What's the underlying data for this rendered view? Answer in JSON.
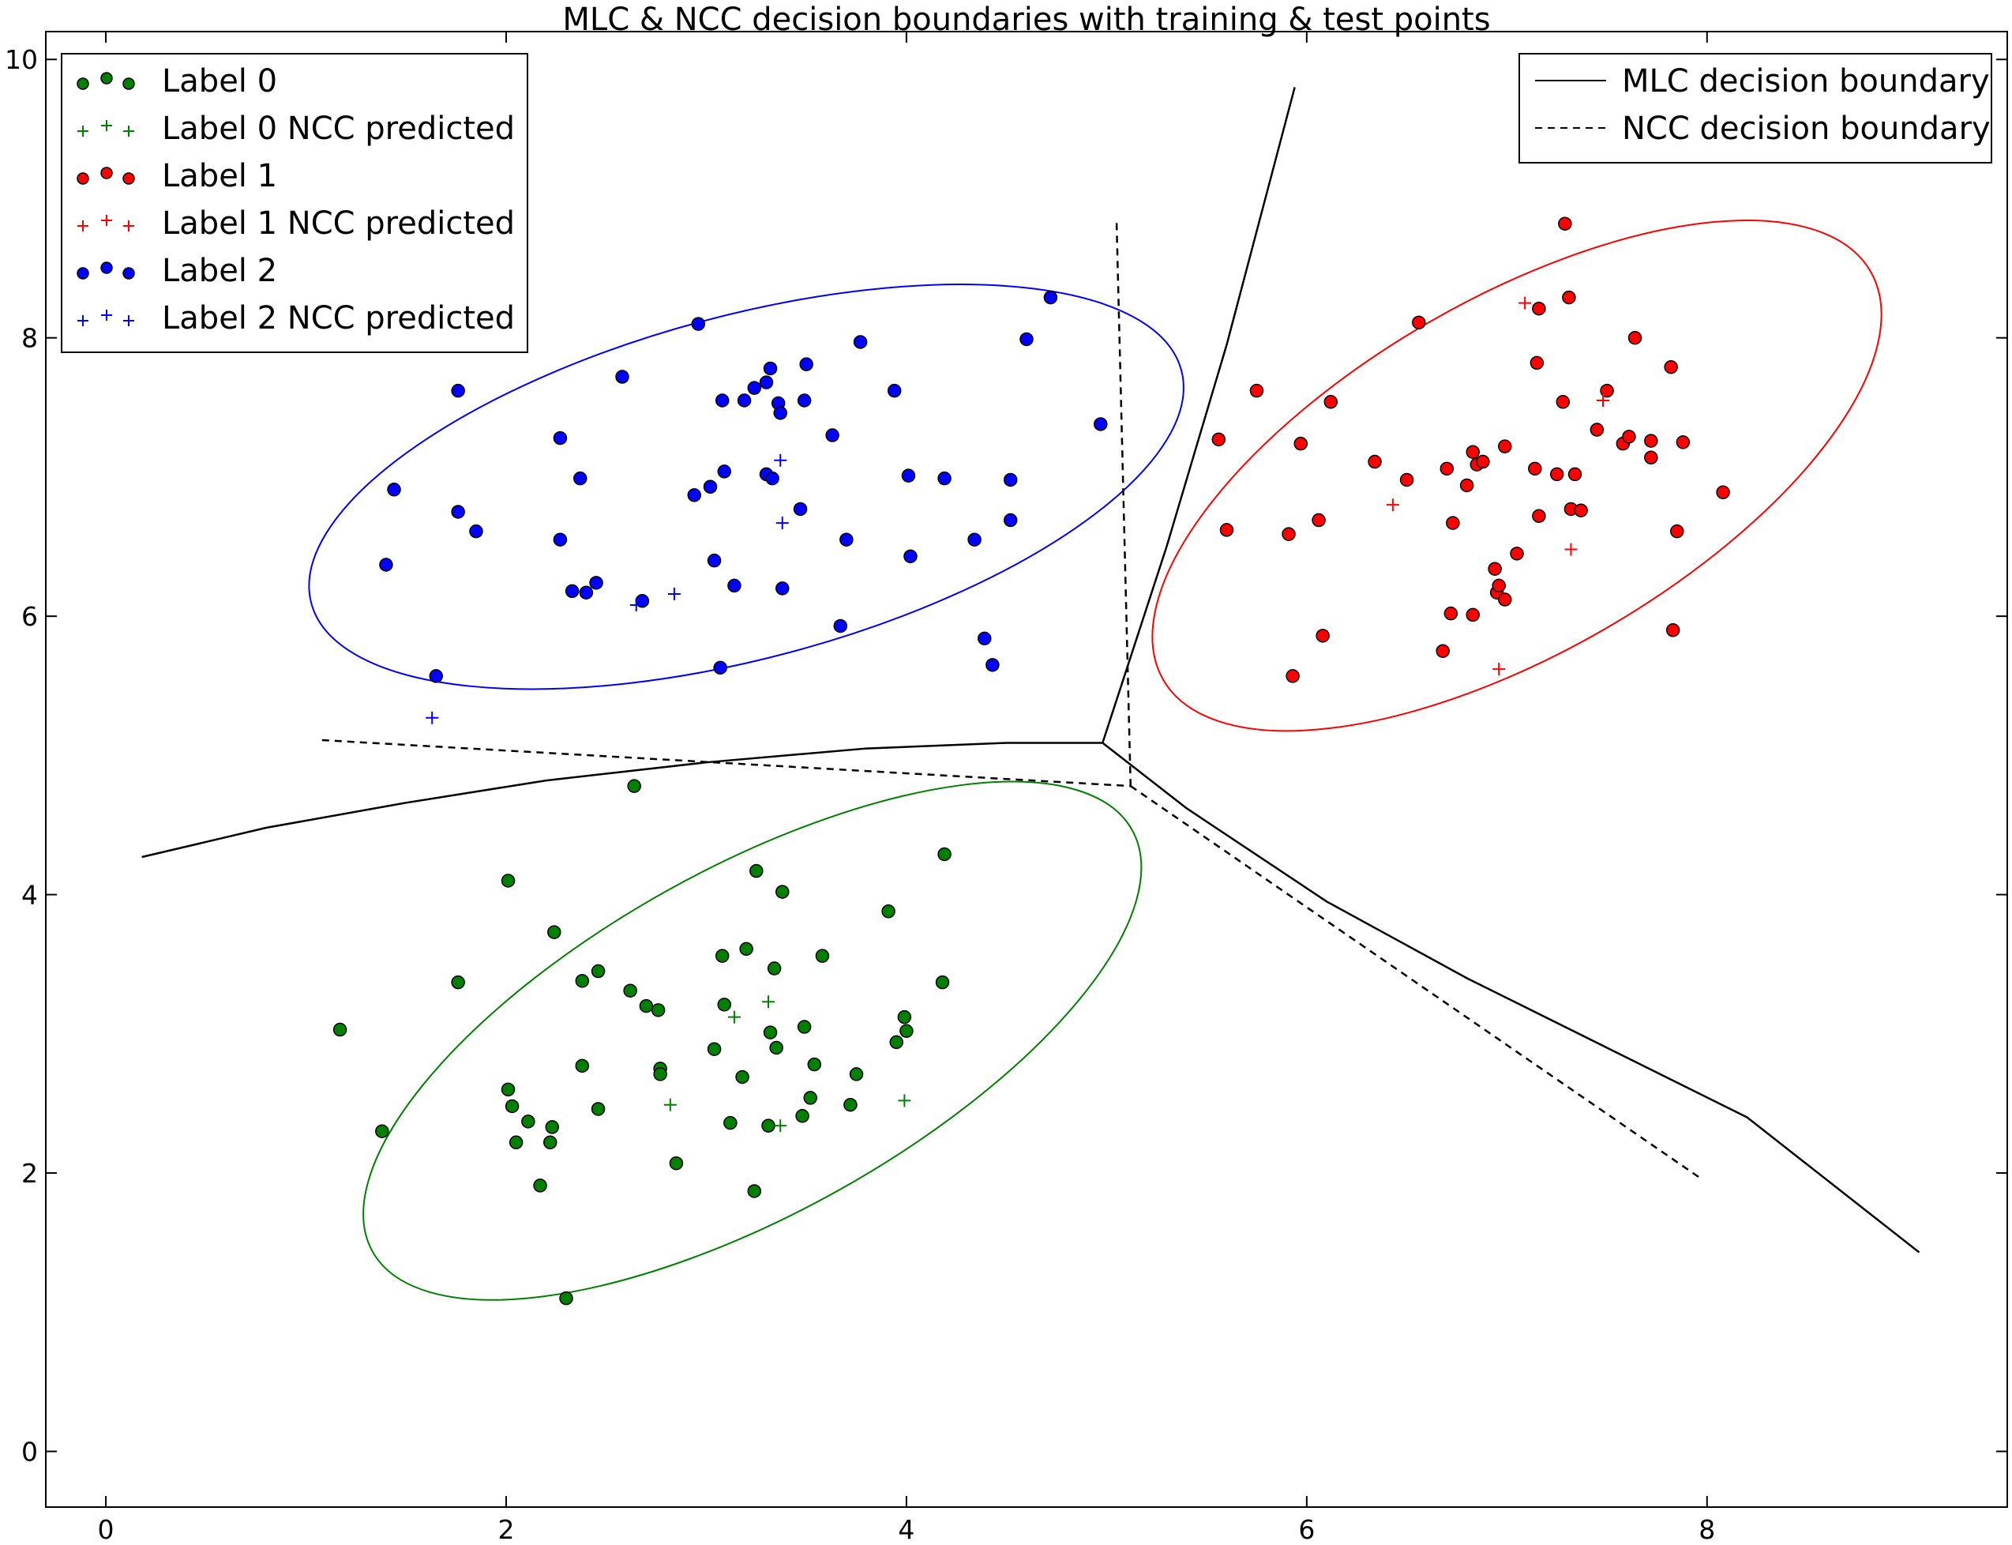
{
  "chart_data": {
    "type": "scatter",
    "title": "MLC & NCC decision boundaries with training & test points",
    "xlabel": "",
    "ylabel": "",
    "xlim": [
      -0.3,
      9.5
    ],
    "ylim": [
      -0.4,
      10.2
    ],
    "xticks": [
      "0",
      "2",
      "4",
      "6",
      "8"
    ],
    "yticks": [
      "0",
      "2",
      "4",
      "6",
      "8",
      "10"
    ],
    "grid": false,
    "legend_left_position": "top-left",
    "legend_right_position": "top-right",
    "colors": {
      "label0": "#008000",
      "label1": "#ff0000",
      "label2": "#0000ff",
      "boundary": "#000000"
    },
    "legend_left": [
      {
        "label": "Label 0",
        "marker": "circle",
        "color": "#008000"
      },
      {
        "label": "Label 0 NCC predicted",
        "marker": "plus",
        "color": "#008000"
      },
      {
        "label": "Label 1",
        "marker": "circle",
        "color": "#ff0000"
      },
      {
        "label": "Label 1 NCC predicted",
        "marker": "plus",
        "color": "#ff0000"
      },
      {
        "label": "Label 2",
        "marker": "circle",
        "color": "#0000ff"
      },
      {
        "label": "Label 2 NCC predicted",
        "marker": "plus",
        "color": "#0000ff"
      }
    ],
    "legend_right": [
      {
        "label": "MLC decision boundary",
        "style": "solid"
      },
      {
        "label": "NCC decision boundary",
        "style": "dashed"
      }
    ],
    "series": [
      {
        "name": "Label 0",
        "marker": "circle",
        "color": "#008000",
        "points": [
          [
            1.17,
            3.03
          ],
          [
            1.38,
            2.3
          ],
          [
            1.76,
            3.37
          ],
          [
            2.01,
            4.1
          ],
          [
            2.01,
            2.6
          ],
          [
            2.03,
            2.48
          ],
          [
            2.05,
            2.22
          ],
          [
            2.11,
            2.37
          ],
          [
            2.17,
            1.91
          ],
          [
            2.22,
            2.22
          ],
          [
            2.23,
            2.33
          ],
          [
            2.24,
            3.73
          ],
          [
            2.3,
            1.1
          ],
          [
            2.38,
            2.77
          ],
          [
            2.38,
            3.38
          ],
          [
            2.46,
            3.45
          ],
          [
            2.46,
            2.46
          ],
          [
            2.64,
            4.78
          ],
          [
            2.62,
            3.31
          ],
          [
            2.7,
            3.2
          ],
          [
            2.76,
            3.17
          ],
          [
            2.77,
            2.75
          ],
          [
            2.77,
            2.71
          ],
          [
            2.85,
            2.07
          ],
          [
            3.04,
            2.89
          ],
          [
            3.08,
            3.56
          ],
          [
            3.09,
            3.21
          ],
          [
            3.12,
            2.36
          ],
          [
            3.18,
            2.69
          ],
          [
            3.2,
            3.61
          ],
          [
            3.24,
            1.87
          ],
          [
            3.25,
            4.17
          ],
          [
            3.31,
            2.34
          ],
          [
            3.32,
            3.01
          ],
          [
            3.34,
            3.47
          ],
          [
            3.35,
            2.9
          ],
          [
            3.38,
            4.02
          ],
          [
            3.48,
            2.41
          ],
          [
            3.49,
            3.05
          ],
          [
            3.52,
            2.54
          ],
          [
            3.54,
            2.78
          ],
          [
            3.58,
            3.56
          ],
          [
            3.72,
            2.49
          ],
          [
            3.75,
            2.71
          ],
          [
            3.91,
            3.88
          ],
          [
            3.95,
            2.94
          ],
          [
            3.99,
            3.12
          ],
          [
            4.0,
            3.02
          ],
          [
            4.18,
            3.37
          ],
          [
            4.19,
            4.29
          ]
        ]
      },
      {
        "name": "Label 0 NCC predicted",
        "marker": "plus",
        "color": "#008000",
        "points": [
          [
            2.82,
            2.49
          ],
          [
            3.14,
            3.12
          ],
          [
            3.31,
            3.23
          ],
          [
            3.37,
            2.34
          ],
          [
            3.99,
            2.52
          ]
        ]
      },
      {
        "name": "Label 1",
        "marker": "circle",
        "color": "#ff0000",
        "points": [
          [
            5.56,
            7.27
          ],
          [
            5.6,
            6.62
          ],
          [
            5.75,
            7.62
          ],
          [
            5.91,
            6.59
          ],
          [
            5.93,
            5.57
          ],
          [
            5.97,
            7.24
          ],
          [
            6.06,
            6.69
          ],
          [
            6.08,
            5.86
          ],
          [
            6.12,
            7.54
          ],
          [
            6.34,
            7.11
          ],
          [
            6.5,
            6.98
          ],
          [
            6.56,
            8.11
          ],
          [
            6.68,
            5.75
          ],
          [
            6.7,
            7.06
          ],
          [
            6.72,
            6.02
          ],
          [
            6.73,
            6.67
          ],
          [
            6.8,
            6.94
          ],
          [
            6.83,
            7.18
          ],
          [
            6.83,
            6.01
          ],
          [
            6.85,
            7.09
          ],
          [
            6.88,
            7.11
          ],
          [
            6.94,
            6.34
          ],
          [
            6.95,
            6.17
          ],
          [
            6.96,
            6.22
          ],
          [
            6.99,
            6.12
          ],
          [
            6.99,
            7.22
          ],
          [
            7.05,
            6.45
          ],
          [
            7.14,
            7.06
          ],
          [
            7.15,
            7.82
          ],
          [
            7.16,
            8.21
          ],
          [
            7.16,
            6.72
          ],
          [
            7.25,
            7.02
          ],
          [
            7.28,
            7.54
          ],
          [
            7.29,
            8.82
          ],
          [
            7.31,
            8.29
          ],
          [
            7.32,
            6.77
          ],
          [
            7.34,
            7.02
          ],
          [
            7.37,
            6.76
          ],
          [
            7.45,
            7.34
          ],
          [
            7.5,
            7.62
          ],
          [
            7.58,
            7.24
          ],
          [
            7.61,
            7.29
          ],
          [
            7.64,
            8.0
          ],
          [
            7.72,
            7.26
          ],
          [
            7.72,
            7.14
          ],
          [
            7.82,
            7.79
          ],
          [
            7.83,
            5.9
          ],
          [
            7.85,
            6.61
          ],
          [
            7.88,
            7.25
          ],
          [
            8.08,
            6.89
          ]
        ]
      },
      {
        "name": "Label 1 NCC predicted",
        "marker": "plus",
        "color": "#ff0000",
        "points": [
          [
            6.43,
            6.8
          ],
          [
            6.96,
            5.62
          ],
          [
            7.09,
            8.25
          ],
          [
            7.32,
            6.48
          ],
          [
            7.48,
            7.55
          ]
        ]
      },
      {
        "name": "Label 2",
        "marker": "circle",
        "color": "#0000ff",
        "points": [
          [
            1.4,
            6.37
          ],
          [
            1.44,
            6.91
          ],
          [
            1.65,
            5.57
          ],
          [
            1.76,
            7.62
          ],
          [
            1.76,
            6.75
          ],
          [
            1.85,
            6.61
          ],
          [
            2.27,
            7.28
          ],
          [
            2.27,
            6.55
          ],
          [
            2.33,
            6.18
          ],
          [
            2.37,
            6.99
          ],
          [
            2.4,
            6.17
          ],
          [
            2.45,
            6.24
          ],
          [
            2.58,
            7.72
          ],
          [
            2.68,
            6.11
          ],
          [
            2.94,
            6.87
          ],
          [
            2.96,
            8.1
          ],
          [
            3.02,
            6.93
          ],
          [
            3.04,
            6.4
          ],
          [
            3.07,
            5.63
          ],
          [
            3.08,
            7.55
          ],
          [
            3.09,
            7.04
          ],
          [
            3.14,
            6.22
          ],
          [
            3.19,
            7.55
          ],
          [
            3.24,
            7.64
          ],
          [
            3.3,
            7.68
          ],
          [
            3.3,
            7.02
          ],
          [
            3.32,
            7.78
          ],
          [
            3.33,
            6.99
          ],
          [
            3.36,
            7.53
          ],
          [
            3.37,
            7.46
          ],
          [
            3.38,
            6.2
          ],
          [
            3.47,
            6.77
          ],
          [
            3.49,
            7.55
          ],
          [
            3.5,
            7.81
          ],
          [
            3.63,
            7.3
          ],
          [
            3.67,
            5.93
          ],
          [
            3.7,
            6.55
          ],
          [
            3.77,
            7.97
          ],
          [
            3.94,
            7.62
          ],
          [
            4.01,
            7.01
          ],
          [
            4.02,
            6.43
          ],
          [
            4.19,
            6.99
          ],
          [
            4.34,
            6.55
          ],
          [
            4.39,
            5.84
          ],
          [
            4.43,
            5.65
          ],
          [
            4.52,
            6.98
          ],
          [
            4.52,
            6.69
          ],
          [
            4.6,
            7.99
          ],
          [
            4.72,
            8.29
          ],
          [
            4.97,
            7.38
          ]
        ]
      },
      {
        "name": "Label 2 NCC predicted",
        "marker": "plus",
        "color": "#0000ff",
        "points": [
          [
            1.63,
            5.27
          ],
          [
            2.65,
            6.08
          ],
          [
            2.84,
            6.16
          ],
          [
            3.37,
            7.12
          ],
          [
            3.38,
            6.67
          ]
        ]
      }
    ],
    "ellipses": [
      {
        "series": "Label 0",
        "color": "#008000",
        "cx": 3.23,
        "cy": 2.95,
        "rx": 2.17,
        "ry": 1.24,
        "angle_deg": 29
      },
      {
        "series": "Label 1",
        "color": "#ff0000",
        "cx": 7.05,
        "cy": 7.01,
        "rx": 2.04,
        "ry": 1.27,
        "angle_deg": 30
      },
      {
        "series": "Label 2",
        "color": "#0000ff",
        "cx": 3.2,
        "cy": 6.93,
        "rx": 2.25,
        "ry": 1.23,
        "angle_deg": 15
      }
    ],
    "boundaries": [
      {
        "name": "MLC decision boundary",
        "style": "solid",
        "segments": [
          [
            [
              0.18,
              4.27
            ],
            [
              0.8,
              4.48
            ],
            [
              1.5,
              4.66
            ],
            [
              2.2,
              4.82
            ],
            [
              3.0,
              4.95
            ],
            [
              3.8,
              5.05
            ],
            [
              4.5,
              5.09
            ],
            [
              4.98,
              5.09
            ]
          ],
          [
            [
              4.98,
              5.09
            ],
            [
              5.3,
              6.5
            ],
            [
              5.6,
              7.95
            ],
            [
              5.94,
              9.8
            ]
          ],
          [
            [
              4.98,
              5.09
            ],
            [
              5.4,
              4.62
            ],
            [
              6.1,
              3.95
            ],
            [
              6.8,
              3.4
            ],
            [
              7.5,
              2.9
            ],
            [
              8.2,
              2.4
            ],
            [
              9.06,
              1.43
            ]
          ]
        ]
      },
      {
        "name": "NCC decision boundary",
        "style": "dashed",
        "segments": [
          [
            [
              1.08,
              5.11
            ],
            [
              5.12,
              4.78
            ]
          ],
          [
            [
              5.12,
              4.78
            ],
            [
              5.05,
              8.83
            ]
          ],
          [
            [
              5.12,
              4.78
            ],
            [
              7.98,
              1.95
            ]
          ]
        ]
      }
    ]
  }
}
